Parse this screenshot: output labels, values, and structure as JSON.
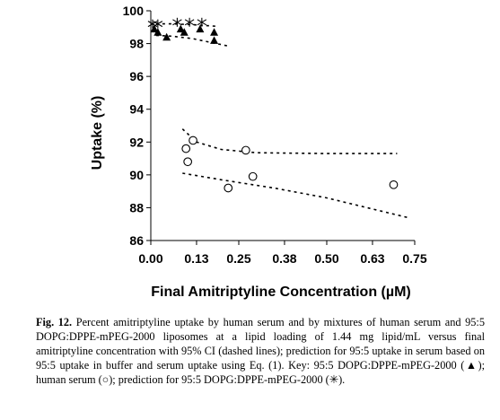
{
  "chart_data": {
    "type": "scatter",
    "xlabel": "Final Amitriptyline Concentration (µM)",
    "ylabel": "Uptake (%)",
    "xlim": [
      0,
      0.75
    ],
    "ylim": [
      86,
      100
    ],
    "x_ticks": [
      "0.00",
      "0.13",
      "0.25",
      "0.38",
      "0.50",
      "0.63",
      "0.75"
    ],
    "y_ticks": [
      "86",
      "88",
      "90",
      "92",
      "94",
      "96",
      "98",
      "100"
    ],
    "grid": false,
    "legend": "none",
    "series": [
      {
        "marker": "triangle",
        "points": [
          [
            0.01,
            98.9
          ],
          [
            0.02,
            98.7
          ],
          [
            0.045,
            98.4
          ],
          [
            0.085,
            98.9
          ],
          [
            0.095,
            98.7
          ],
          [
            0.14,
            98.9
          ],
          [
            0.18,
            98.7
          ],
          [
            0.18,
            98.2
          ]
        ]
      },
      {
        "marker": "circle",
        "points": [
          [
            0.1,
            91.6
          ],
          [
            0.105,
            90.8
          ],
          [
            0.12,
            92.1
          ],
          [
            0.22,
            89.2
          ],
          [
            0.27,
            91.5
          ],
          [
            0.29,
            89.9
          ],
          [
            0.69,
            89.4
          ]
        ]
      },
      {
        "marker": "asterisk",
        "points": [
          [
            0.005,
            99.2
          ],
          [
            0.02,
            99.2
          ],
          [
            0.075,
            99.3
          ],
          [
            0.11,
            99.3
          ],
          [
            0.145,
            99.3
          ]
        ]
      }
    ],
    "ci_lines": [
      {
        "style": "dashed",
        "points": [
          [
            0.015,
            99.2
          ],
          [
            0.06,
            99.2
          ],
          [
            0.12,
            99.15
          ],
          [
            0.19,
            99.05
          ]
        ]
      },
      {
        "style": "dashed",
        "points": [
          [
            0.015,
            98.5
          ],
          [
            0.06,
            98.45
          ],
          [
            0.12,
            98.3
          ],
          [
            0.22,
            97.85
          ]
        ]
      },
      {
        "style": "dashed",
        "points": [
          [
            0.09,
            92.8
          ],
          [
            0.13,
            92.0
          ],
          [
            0.2,
            91.55
          ],
          [
            0.3,
            91.35
          ],
          [
            0.5,
            91.3
          ],
          [
            0.7,
            91.3
          ]
        ]
      },
      {
        "style": "dashed",
        "points": [
          [
            0.09,
            90.1
          ],
          [
            0.2,
            89.7
          ],
          [
            0.35,
            89.2
          ],
          [
            0.5,
            88.6
          ],
          [
            0.73,
            87.4
          ]
        ]
      }
    ]
  },
  "caption": {
    "label": "Fig. 12.",
    "text": " Percent amitriptyline uptake by human serum and by mixtures of human serum and 95:5 DOPG:DPPE-mPEG-2000 liposomes at a lipid loading of 1.44 mg lipid/mL versus final amitriptyline concentration with 95% CI (dashed lines); prediction for 95:5 uptake in serum based on 95:5 uptake in buffer and serum uptake using Eq. (1). Key: 95:5 DOPG:DPPE-mPEG-2000 (▲); human serum (○); prediction for 95:5 DOPG:DPPE-mPEG-2000 (✳)."
  }
}
